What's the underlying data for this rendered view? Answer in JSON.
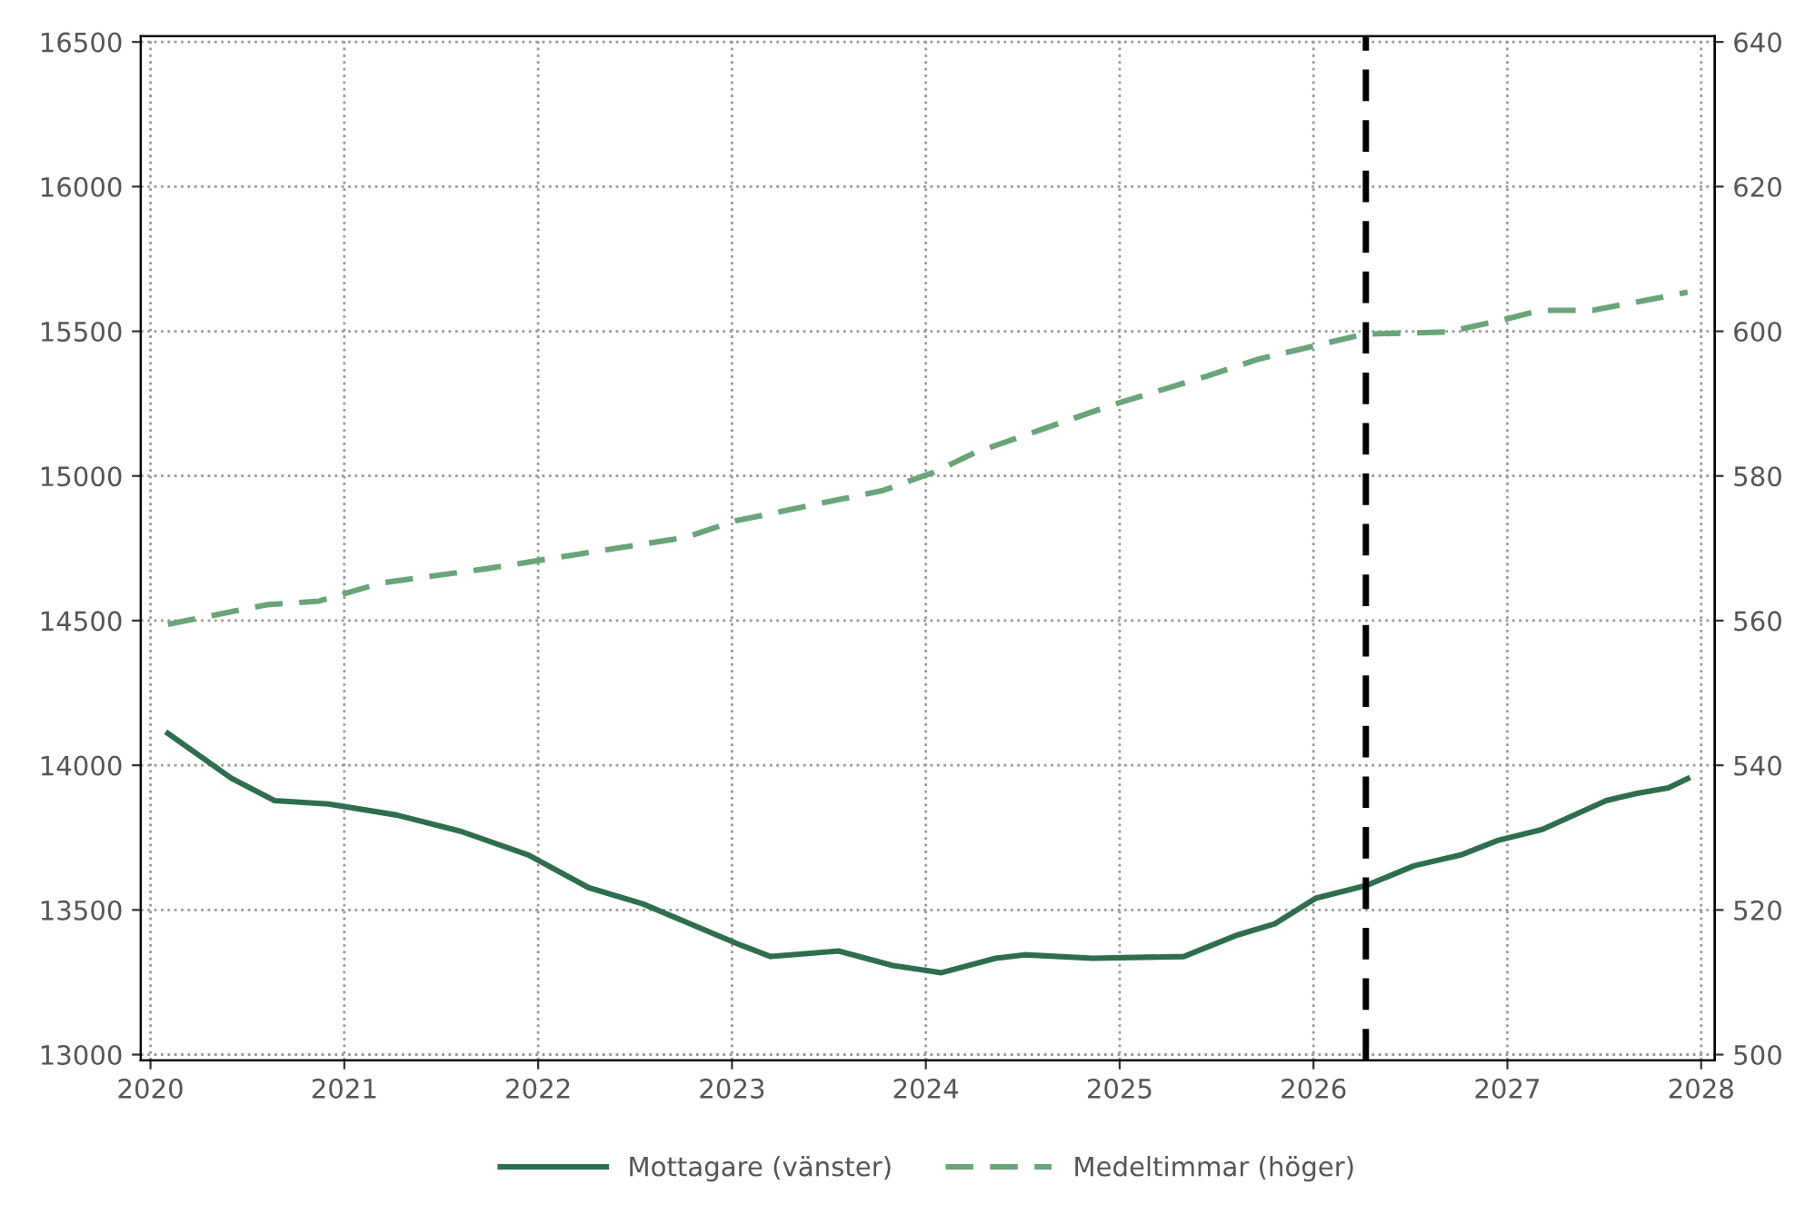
{
  "chart_data": {
    "type": "line",
    "xlim": [
      2019.95,
      2028.07
    ],
    "xticks": [
      2020,
      2021,
      2022,
      2023,
      2024,
      2025,
      2026,
      2027,
      2028
    ],
    "ylim": [
      12980,
      16520
    ],
    "yticks": [
      13000,
      13500,
      14000,
      14500,
      15000,
      15500,
      16000,
      16500
    ],
    "y2lim": [
      499.2,
      640.8
    ],
    "y2ticks": [
      500,
      520,
      540,
      560,
      580,
      600,
      620,
      640
    ],
    "grid": true,
    "legend": "bottom",
    "ref_lines": [
      {
        "axis": "x",
        "value": 2026.27,
        "label": null,
        "color": "#000000",
        "line_style": "dashed"
      }
    ],
    "series": [
      {
        "name": "Mottagare (vänster)",
        "color": "#2e6e4e",
        "line_style": "solid",
        "x": [
          2020.09,
          2020.42,
          2020.64,
          2020.92,
          2021.27,
          2021.6,
          2021.95,
          2022.26,
          2022.54,
          2023.05,
          2023.2,
          2023.55,
          2023.83,
          2024.08,
          2024.36,
          2024.51,
          2024.86,
          2025.33,
          2025.61,
          2025.8,
          2026.01,
          2026.27,
          2026.52,
          2026.76,
          2026.95,
          2027.18,
          2027.51,
          2027.67,
          2027.83,
          2027.93
        ],
        "values": [
          14110,
          13954,
          13878,
          13866,
          13828,
          13772,
          13690,
          13577,
          13521,
          13377,
          13339,
          13358,
          13308,
          13283,
          13333,
          13345,
          13333,
          13339,
          13414,
          13452,
          13540,
          13584,
          13653,
          13690,
          13740,
          13778,
          13878,
          13903,
          13922,
          13954
        ]
      },
      {
        "name": "Medeltimmar (höger)",
        "color": "#6aa57a",
        "line_style": "dashed",
        "axis": "y2",
        "x": [
          2020.09,
          2020.6,
          2020.87,
          2021.19,
          2021.74,
          2022.21,
          2022.76,
          2023.02,
          2023.78,
          2024.04,
          2024.26,
          2024.96,
          2025.45,
          2025.71,
          2026.26,
          2026.69,
          2026.95,
          2027.17,
          2027.44,
          2027.93
        ],
        "values": [
          559.5,
          562.2,
          562.7,
          565.2,
          567.2,
          569.2,
          571.5,
          573.8,
          578.0,
          580.5,
          583.3,
          589.8,
          593.8,
          596.1,
          599.6,
          599.9,
          601.4,
          602.9,
          602.9,
          605.4
        ]
      }
    ]
  }
}
